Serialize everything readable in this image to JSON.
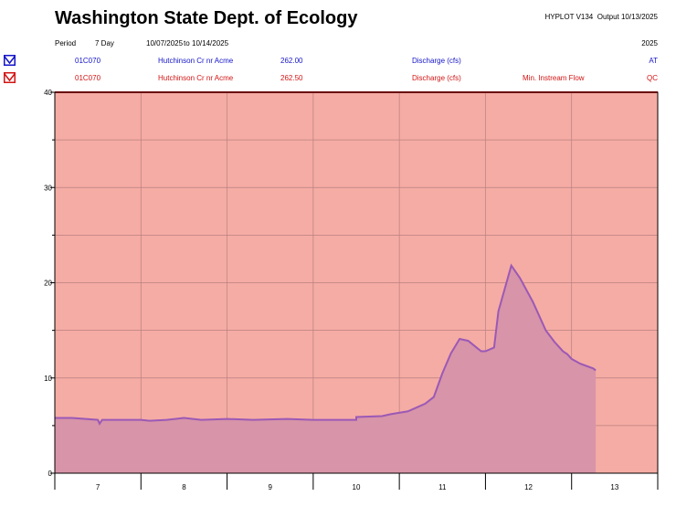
{
  "header": {
    "title": "Washington State Dept. of Ecology",
    "program": "HYPLOT V134",
    "output": "Output 10/13/2025",
    "period_label": "Period",
    "period_length": "7 Day",
    "start_date": "10/07/2025",
    "to_label": "to",
    "end_date": "10/14/2025",
    "year": "2025"
  },
  "stations": [
    {
      "id": "01C070",
      "name": "Hutchinson Cr nr Acme",
      "code": "262.00",
      "parameter": "Discharge (cfs)",
      "note": "",
      "flag": "AT",
      "color": "#1414c8",
      "icon": "blue-station-icon"
    },
    {
      "id": "01C070",
      "name": "Hutchinson Cr nr Acme",
      "code": "262.50",
      "parameter": "Discharge (cfs)",
      "note": "Min. Instream Flow",
      "flag": "QC",
      "color": "#d21414",
      "icon": "red-station-icon"
    }
  ],
  "colors": {
    "instream_fill": "#f5aca4",
    "instream_line": "#d21414",
    "discharge_fill": "#d894a8",
    "discharge_line": "#9b59b6",
    "grid": "#b98080"
  },
  "chart_data": {
    "type": "area",
    "title": "Washington State Dept. of Ecology",
    "xlabel": "",
    "ylabel": "",
    "xlim": [
      7,
      14
    ],
    "ylim": [
      0,
      40
    ],
    "grid": true,
    "yticks": [
      0,
      10,
      20,
      30,
      40
    ],
    "xtick_labels": [
      "7",
      "8",
      "9",
      "10",
      "11",
      "12",
      "13"
    ],
    "series": [
      {
        "name": "Min. Instream Flow",
        "x": [
          7,
          14
        ],
        "y": [
          40,
          40
        ]
      },
      {
        "name": "Discharge (cfs)",
        "x": [
          7.0,
          7.2,
          7.5,
          7.52,
          7.55,
          8.0,
          8.1,
          8.3,
          8.5,
          8.7,
          9.0,
          9.3,
          9.7,
          10.0,
          10.15,
          10.5,
          10.5,
          10.8,
          10.9,
          11.1,
          11.3,
          11.4,
          11.5,
          11.6,
          11.7,
          11.8,
          11.95,
          12.0,
          12.1,
          12.15,
          12.3,
          12.4,
          12.55,
          12.65,
          12.7,
          12.8,
          12.9,
          12.95,
          13.0,
          13.1,
          13.25,
          13.28
        ],
        "y": [
          5.8,
          5.8,
          5.6,
          5.2,
          5.6,
          5.6,
          5.5,
          5.6,
          5.8,
          5.6,
          5.7,
          5.6,
          5.7,
          5.6,
          5.6,
          5.6,
          5.9,
          6.0,
          6.2,
          6.5,
          7.3,
          8.0,
          10.5,
          12.6,
          14.1,
          13.9,
          12.8,
          12.8,
          13.2,
          17.0,
          21.8,
          20.5,
          18.0,
          16.0,
          15.0,
          13.8,
          12.8,
          12.5,
          12.0,
          11.5,
          11.0,
          10.8
        ]
      }
    ]
  }
}
